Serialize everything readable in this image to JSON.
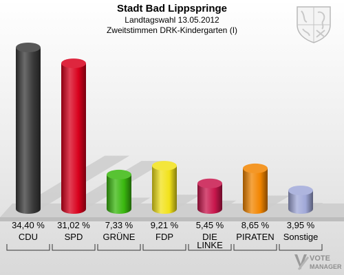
{
  "chart_data": {
    "type": "bar",
    "title": "Stadt Bad Lippspringe",
    "subtitle": "Landtagswahl 13.05.2012",
    "subsubtitle": "Zweitstimmen DRK-Kindergarten (I)",
    "categories": [
      "CDU",
      "SPD",
      "GRÜNE",
      "FDP",
      "DIE LINKE",
      "PIRATEN",
      "Sonstige"
    ],
    "category_lines": [
      [
        "CDU"
      ],
      [
        "SPD"
      ],
      [
        "GRÜNE"
      ],
      [
        "FDP"
      ],
      [
        "DIE",
        "LINKE"
      ],
      [
        "PIRATEN"
      ],
      [
        "Sonstige"
      ]
    ],
    "values": [
      34.4,
      31.02,
      7.33,
      9.21,
      5.45,
      8.65,
      3.95
    ],
    "value_labels": [
      "34,40 %",
      "31,02 %",
      "7,33 %",
      "9,21 %",
      "5,45 %",
      "8,65 %",
      "3,95 %"
    ],
    "colors": [
      "#3a3a3a",
      "#d8001c",
      "#3ab80f",
      "#f2e21a",
      "#c8164c",
      "#f28500",
      "#a0a8d8"
    ],
    "ylim": [
      0,
      34.4
    ],
    "grid": false,
    "legend": "none"
  },
  "branding": {
    "logo_line1": "VOTE",
    "logo_line2": "MANAGER"
  }
}
